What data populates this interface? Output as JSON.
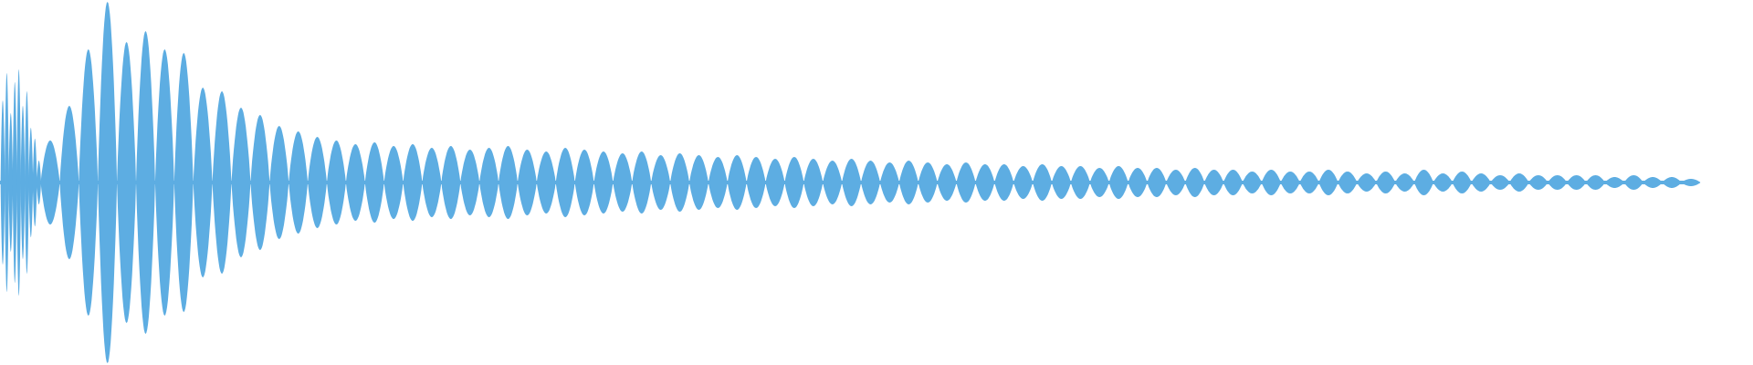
{
  "chart_data": {
    "type": "area",
    "title": "",
    "xlabel": "",
    "ylabel": "",
    "ylim": [
      -1,
      1
    ],
    "grid": false,
    "color": "#5dade2",
    "background": "#ffffff",
    "onset_peaks": [
      0.45,
      0.6,
      0.38,
      0.55,
      0.62,
      0.42,
      0.5,
      0.3,
      0.24,
      0.12
    ],
    "lobe_peaks": [
      0.23,
      0.42,
      0.73,
      0.99,
      0.77,
      0.83,
      0.73,
      0.71,
      0.52,
      0.5,
      0.41,
      0.37,
      0.31,
      0.28,
      0.25,
      0.23,
      0.21,
      0.22,
      0.2,
      0.21,
      0.19,
      0.2,
      0.18,
      0.19,
      0.2,
      0.18,
      0.17,
      0.19,
      0.18,
      0.17,
      0.16,
      0.17,
      0.15,
      0.16,
      0.15,
      0.14,
      0.15,
      0.14,
      0.13,
      0.14,
      0.13,
      0.12,
      0.13,
      0.12,
      0.11,
      0.12,
      0.11,
      0.1,
      0.11,
      0.1,
      0.1,
      0.09,
      0.1,
      0.09,
      0.09,
      0.08,
      0.09,
      0.08,
      0.08,
      0.07,
      0.08,
      0.07,
      0.07,
      0.06,
      0.07,
      0.06,
      0.06,
      0.07,
      0.06,
      0.05,
      0.06,
      0.05,
      0.07,
      0.05,
      0.06,
      0.05,
      0.04,
      0.05,
      0.04,
      0.04,
      0.04,
      0.04,
      0.03,
      0.04,
      0.03,
      0.03,
      0.02
    ]
  }
}
